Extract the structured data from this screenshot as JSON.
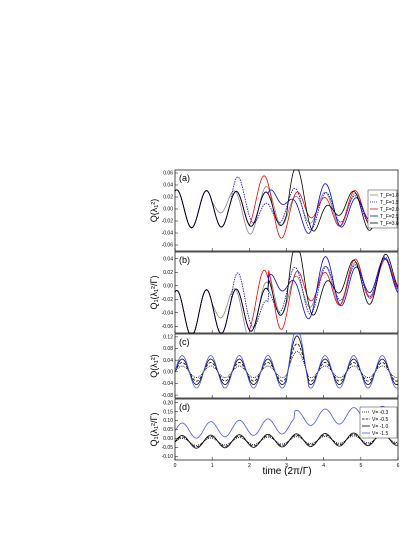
{
  "chart_data": [
    {
      "panel": "(a)",
      "type": "line",
      "ylabel": "Q(λ₁²)",
      "ylim": [
        -0.07,
        0.065
      ],
      "yticks": [
        "0.06",
        "0.04",
        "0.02",
        "0.00",
        "-0.02",
        "-0.04",
        "-0.06"
      ],
      "legend": {
        "placement": "right",
        "entries": [
          {
            "label": "T_F=1.0",
            "color": "#888888",
            "dash": "solid"
          },
          {
            "label": "T_F=1.5",
            "color": "#0000cc",
            "dash": "dotted"
          },
          {
            "label": "T_F=2.0",
            "color": "#ff0000",
            "dash": "solid"
          },
          {
            "label": "T_F=2.5",
            "color": "#0000ff",
            "dash": "solid"
          },
          {
            "label": "T_F=3.0",
            "color": "#000000",
            "dash": "solid"
          }
        ]
      }
    },
    {
      "panel": "(b)",
      "type": "line",
      "ylabel": "Q₁(λ₁²/Γ)",
      "ylim": [
        -0.07,
        0.05
      ],
      "yticks": [
        "0.04",
        "0.02",
        "0.00",
        "-0.02",
        "-0.04",
        "-0.06"
      ]
    },
    {
      "panel": "(c)",
      "type": "line",
      "ylabel": "Q(λ₁²)",
      "ylim": [
        -0.09,
        0.13
      ],
      "yticks": [
        "0.12",
        "0.08",
        "0.04",
        "0.00",
        "-0.04",
        "-0.08"
      ]
    },
    {
      "panel": "(d)",
      "type": "line",
      "ylabel": "Q₁(λ₁²/Γ)",
      "ylim": [
        -0.12,
        0.22
      ],
      "yticks": [
        "0.20",
        "0.15",
        "0.10",
        "0.05",
        "0.00",
        "-0.05",
        "-0.10"
      ],
      "legend": {
        "placement": "right",
        "entries": [
          {
            "label": "V= -0.3",
            "color": "#000000",
            "dash": "dotted"
          },
          {
            "label": "V= -0.5",
            "color": "#000000",
            "dash": "dashed"
          },
          {
            "label": "V= -1.0",
            "color": "#000000",
            "dash": "solid"
          },
          {
            "label": "V= -1.5",
            "color": "#4455ff",
            "dash": "solid"
          }
        ]
      }
    }
  ],
  "x_axis": {
    "title": "time (2π/Γ)",
    "range": [
      0,
      6
    ],
    "ticks": [
      "0",
      "1",
      "2",
      "3",
      "4",
      "5",
      "6"
    ]
  }
}
